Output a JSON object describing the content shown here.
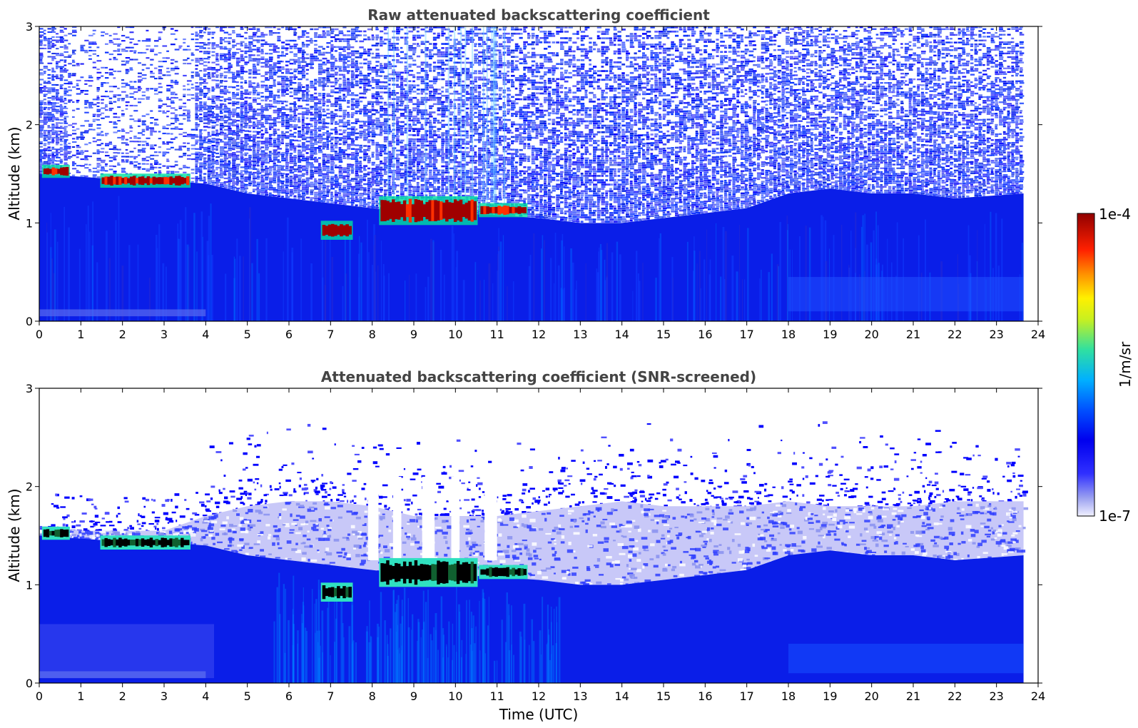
{
  "chart_data": [
    {
      "type": "heatmap",
      "title": "Raw attenuated backscattering coefficient",
      "xlabel": "",
      "ylabel": "Altitude (km)",
      "xlim": [
        0,
        24
      ],
      "ylim": [
        0,
        3
      ],
      "x_ticks": [
        "0",
        "1",
        "2",
        "3",
        "4",
        "5",
        "6",
        "7",
        "8",
        "9",
        "10",
        "11",
        "12",
        "13",
        "14",
        "15",
        "16",
        "17",
        "18",
        "19",
        "20",
        "21",
        "22",
        "23",
        "24"
      ],
      "y_ticks": [
        "0",
        "1",
        "2",
        "3"
      ],
      "data_end_time": 23.65,
      "boundary_layer_top_km": [
        [
          0,
          1.5
        ],
        [
          1,
          1.47
        ],
        [
          2,
          1.44
        ],
        [
          3,
          1.43
        ],
        [
          4,
          1.4
        ],
        [
          5,
          1.3
        ],
        [
          6,
          1.25
        ],
        [
          7,
          1.2
        ],
        [
          8,
          1.15
        ],
        [
          9,
          1.1
        ],
        [
          10,
          1.1
        ],
        [
          11,
          1.08
        ],
        [
          12,
          1.05
        ],
        [
          13,
          1.0
        ],
        [
          14,
          1.0
        ],
        [
          15,
          1.05
        ],
        [
          16,
          1.1
        ],
        [
          17,
          1.15
        ],
        [
          18,
          1.3
        ],
        [
          19,
          1.35
        ],
        [
          20,
          1.3
        ],
        [
          21,
          1.3
        ],
        [
          22,
          1.25
        ],
        [
          23,
          1.28
        ],
        [
          23.65,
          1.3
        ]
      ],
      "cloud_segments": [
        {
          "t0": 0.1,
          "t1": 0.7,
          "z0": 1.48,
          "z1": 1.57,
          "level": "high"
        },
        {
          "t0": 1.5,
          "t1": 3.6,
          "z0": 1.38,
          "z1": 1.48,
          "level": "high"
        },
        {
          "t0": 6.8,
          "t1": 7.5,
          "z0": 0.85,
          "z1": 1.0,
          "level": "high"
        },
        {
          "t0": 8.2,
          "t1": 10.5,
          "z0": 1.0,
          "z1": 1.25,
          "level": "high"
        },
        {
          "t0": 10.6,
          "t1": 11.7,
          "z0": 1.08,
          "z1": 1.18,
          "level": "high"
        }
      ],
      "colorbar": {
        "min_label": "1e-7",
        "max_label": "1e-4",
        "label": "1/m/sr",
        "scale": "log"
      }
    },
    {
      "type": "heatmap",
      "title": "Attenuated backscattering coefficient (SNR-screened)",
      "xlabel": "Time (UTC)",
      "ylabel": "Altitude (km)",
      "xlim": [
        0,
        24
      ],
      "ylim": [
        0,
        3
      ],
      "x_ticks": [
        "0",
        "1",
        "2",
        "3",
        "4",
        "5",
        "6",
        "7",
        "8",
        "9",
        "10",
        "11",
        "12",
        "13",
        "14",
        "15",
        "16",
        "17",
        "18",
        "19",
        "20",
        "21",
        "22",
        "23",
        "24"
      ],
      "y_ticks": [
        "0",
        "1",
        "2",
        "3"
      ],
      "data_end_time": 23.65,
      "screened_top_km": [
        [
          0,
          1.6
        ],
        [
          1,
          1.55
        ],
        [
          2,
          1.55
        ],
        [
          3,
          1.55
        ],
        [
          4,
          1.7
        ],
        [
          5,
          1.8
        ],
        [
          6,
          1.85
        ],
        [
          7,
          1.85
        ],
        [
          8,
          1.8
        ],
        [
          9,
          1.7
        ],
        [
          10,
          1.7
        ],
        [
          11,
          1.7
        ],
        [
          12,
          1.75
        ],
        [
          13,
          1.8
        ],
        [
          14,
          1.85
        ],
        [
          15,
          1.8
        ],
        [
          16,
          1.8
        ],
        [
          17,
          1.8
        ],
        [
          18,
          1.85
        ],
        [
          19,
          1.8
        ],
        [
          20,
          1.8
        ],
        [
          21,
          1.8
        ],
        [
          22,
          1.85
        ],
        [
          23,
          1.85
        ],
        [
          23.65,
          1.85
        ]
      ],
      "colorbar": {
        "min_label": "1e-7",
        "max_label": "1e-4",
        "label": "1/m/sr",
        "scale": "log"
      }
    }
  ]
}
